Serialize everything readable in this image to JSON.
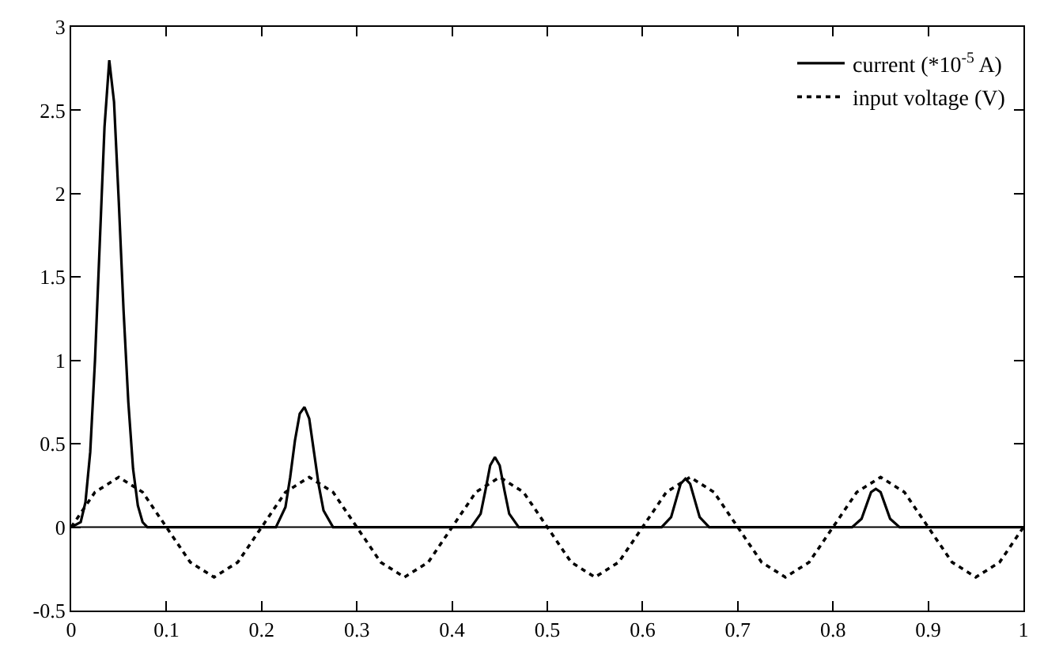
{
  "chart_data": {
    "type": "line",
    "xlim": [
      0,
      1
    ],
    "ylim": [
      -0.5,
      3
    ],
    "xticks": [
      0,
      0.1,
      0.2,
      0.3,
      0.4,
      0.5,
      0.6,
      0.7,
      0.8,
      0.9,
      1
    ],
    "yticks": [
      -0.5,
      0,
      0.5,
      1,
      1.5,
      2,
      2.5,
      3
    ],
    "grid": false,
    "legend": "top right",
    "marker": "none",
    "ref_lines": [
      {
        "axis": "y",
        "value": 0,
        "color": "#000000"
      }
    ],
    "series": [
      {
        "name": "current (*10$^{-5}$ A)",
        "color": "#000000",
        "line_style": "solid",
        "x": [
          0,
          0.01,
          0.015,
          0.02,
          0.025,
          0.03,
          0.035,
          0.04,
          0.045,
          0.05,
          0.055,
          0.06,
          0.065,
          0.07,
          0.075,
          0.08,
          0.1,
          0.2,
          0.215,
          0.225,
          0.23,
          0.235,
          0.24,
          0.245,
          0.25,
          0.255,
          0.26,
          0.265,
          0.275,
          0.3,
          0.4,
          0.42,
          0.43,
          0.435,
          0.44,
          0.445,
          0.45,
          0.455,
          0.46,
          0.47,
          0.5,
          0.6,
          0.62,
          0.63,
          0.635,
          0.64,
          0.645,
          0.65,
          0.655,
          0.66,
          0.67,
          0.7,
          0.8,
          0.82,
          0.83,
          0.835,
          0.84,
          0.845,
          0.85,
          0.855,
          0.86,
          0.87,
          0.9,
          1
        ],
        "values": [
          0,
          0.03,
          0.15,
          0.45,
          1.0,
          1.7,
          2.4,
          2.8,
          2.55,
          1.95,
          1.3,
          0.75,
          0.35,
          0.13,
          0.03,
          0,
          0,
          0,
          0,
          0.12,
          0.3,
          0.52,
          0.68,
          0.72,
          0.65,
          0.45,
          0.25,
          0.1,
          0,
          0,
          0,
          0,
          0.08,
          0.22,
          0.37,
          0.42,
          0.37,
          0.22,
          0.08,
          0,
          0,
          0,
          0,
          0.06,
          0.16,
          0.26,
          0.29,
          0.26,
          0.16,
          0.06,
          0,
          0,
          0,
          0,
          0.05,
          0.13,
          0.21,
          0.23,
          0.21,
          0.13,
          0.05,
          0,
          0,
          0
        ]
      },
      {
        "name": "input voltage (V)",
        "color": "#000000",
        "line_style": "dotted",
        "x": [
          0,
          0.025,
          0.05,
          0.075,
          0.1,
          0.125,
          0.15,
          0.175,
          0.2,
          0.225,
          0.25,
          0.275,
          0.3,
          0.325,
          0.35,
          0.375,
          0.4,
          0.425,
          0.45,
          0.475,
          0.5,
          0.525,
          0.55,
          0.575,
          0.6,
          0.625,
          0.65,
          0.675,
          0.7,
          0.725,
          0.75,
          0.775,
          0.8,
          0.825,
          0.85,
          0.875,
          0.9,
          0.925,
          0.95,
          0.975,
          1
        ],
        "values": [
          0,
          0.21,
          0.3,
          0.21,
          0,
          -0.21,
          -0.3,
          -0.21,
          0,
          0.21,
          0.3,
          0.21,
          0,
          -0.21,
          -0.3,
          -0.21,
          0,
          0.21,
          0.3,
          0.21,
          0,
          -0.21,
          -0.3,
          -0.21,
          0,
          0.21,
          0.3,
          0.21,
          0,
          -0.21,
          -0.3,
          -0.21,
          0,
          0.21,
          0.3,
          0.21,
          0,
          -0.21,
          -0.3,
          -0.21,
          0
        ]
      }
    ]
  }
}
